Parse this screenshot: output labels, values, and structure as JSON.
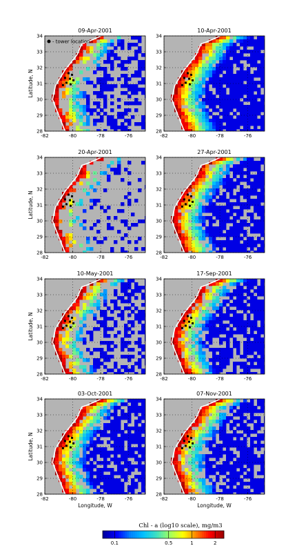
{
  "chart_data": [
    {
      "type": "heatmap",
      "title": "09-Apr-2001",
      "ylabel": "Latitude, N",
      "xlabel": "",
      "x_ticks": [
        "-82",
        "-80",
        "-78",
        "-76"
      ],
      "y_ticks": [
        "28",
        "29",
        "30",
        "31",
        "32",
        "33",
        "34"
      ],
      "xlim": [
        -82,
        -74.8
      ],
      "ylim": [
        28,
        34
      ],
      "legend": "top-left",
      "legend_label": "- tower location",
      "coverage": 0.45
    },
    {
      "type": "heatmap",
      "title": "10-Apr-2001",
      "ylabel": "",
      "xlabel": "",
      "x_ticks": [
        "-82",
        "-80",
        "-78",
        "-76"
      ],
      "y_ticks": [
        "28",
        "29",
        "30",
        "31",
        "32",
        "33",
        "34"
      ],
      "xlim": [
        -82,
        -74.8
      ],
      "ylim": [
        28,
        34
      ],
      "coverage": 0.85
    },
    {
      "type": "heatmap",
      "title": "20-Apr-2001",
      "ylabel": "Latitude, N",
      "xlabel": "",
      "x_ticks": [
        "-82",
        "-80",
        "-78",
        "-76"
      ],
      "y_ticks": [
        "28",
        "29",
        "30",
        "31",
        "32",
        "33",
        "34"
      ],
      "xlim": [
        -82,
        -74.8
      ],
      "ylim": [
        28,
        34
      ],
      "coverage": 0.2
    },
    {
      "type": "heatmap",
      "title": "27-Apr-2001",
      "ylabel": "",
      "xlabel": "",
      "x_ticks": [
        "-82",
        "-80",
        "-78",
        "-76"
      ],
      "y_ticks": [
        "28",
        "29",
        "30",
        "31",
        "32",
        "33",
        "34"
      ],
      "xlim": [
        -82,
        -74.8
      ],
      "ylim": [
        28,
        34
      ],
      "coverage": 0.75
    },
    {
      "type": "heatmap",
      "title": "10-May-2001",
      "ylabel": "Latitude, N",
      "xlabel": "",
      "x_ticks": [
        "-82",
        "-80",
        "-78",
        "-76"
      ],
      "y_ticks": [
        "28",
        "29",
        "30",
        "31",
        "32",
        "33",
        "34"
      ],
      "xlim": [
        -82,
        -74.8
      ],
      "ylim": [
        28,
        34
      ],
      "coverage": 0.45
    },
    {
      "type": "heatmap",
      "title": "17-Sep-2001",
      "ylabel": "",
      "xlabel": "",
      "x_ticks": [
        "-82",
        "-80",
        "-78",
        "-76"
      ],
      "y_ticks": [
        "28",
        "29",
        "30",
        "31",
        "32",
        "33",
        "34"
      ],
      "xlim": [
        -82,
        -74.8
      ],
      "ylim": [
        28,
        34
      ],
      "coverage": 0.7
    },
    {
      "type": "heatmap",
      "title": "03-Oct-2001",
      "ylabel": "Latitude, N",
      "xlabel": "Longitude, W",
      "x_ticks": [
        "-82",
        "-80",
        "-78",
        "-76"
      ],
      "y_ticks": [
        "28",
        "29",
        "30",
        "31",
        "32",
        "33",
        "34"
      ],
      "xlim": [
        -82,
        -74.8
      ],
      "ylim": [
        28,
        34
      ],
      "coverage": 0.7
    },
    {
      "type": "heatmap",
      "title": "07-Nov-2001",
      "ylabel": "",
      "xlabel": "Longitude, W",
      "x_ticks": [
        "-82",
        "-80",
        "-78",
        "-76"
      ],
      "y_ticks": [
        "28",
        "29",
        "30",
        "31",
        "32",
        "33",
        "34"
      ],
      "xlim": [
        -82,
        -74.8
      ],
      "ylim": [
        28,
        34
      ],
      "coverage": 0.7
    }
  ],
  "colorbar": {
    "title": "Chl - a (log10 scale), mg/m3",
    "ticks": [
      "0.1",
      "0.5",
      "1",
      "2"
    ],
    "tick_values": [
      0.1,
      0.5,
      1,
      2
    ],
    "range": [
      0.07,
      2.6
    ],
    "colors": [
      "#0000a0",
      "#0000ff",
      "#0080ff",
      "#00c0ff",
      "#40e0c0",
      "#a0ff60",
      "#ffff00",
      "#ff8000",
      "#ff0000",
      "#a00000"
    ]
  },
  "colors": {
    "land": "#b4b4b4",
    "coast": "#ffffff",
    "tower": "#000000"
  },
  "towers": [
    {
      "lon": -80.3,
      "lat": 31.65
    },
    {
      "lon": -80.05,
      "lat": 31.55
    },
    {
      "lon": -80.55,
      "lat": 31.35
    },
    {
      "lon": -80.2,
      "lat": 31.3
    },
    {
      "lon": -79.95,
      "lat": 31.2
    },
    {
      "lon": -80.45,
      "lat": 31.05
    },
    {
      "lon": -80.15,
      "lat": 30.95
    },
    {
      "lon": -80.7,
      "lat": 30.9
    }
  ]
}
